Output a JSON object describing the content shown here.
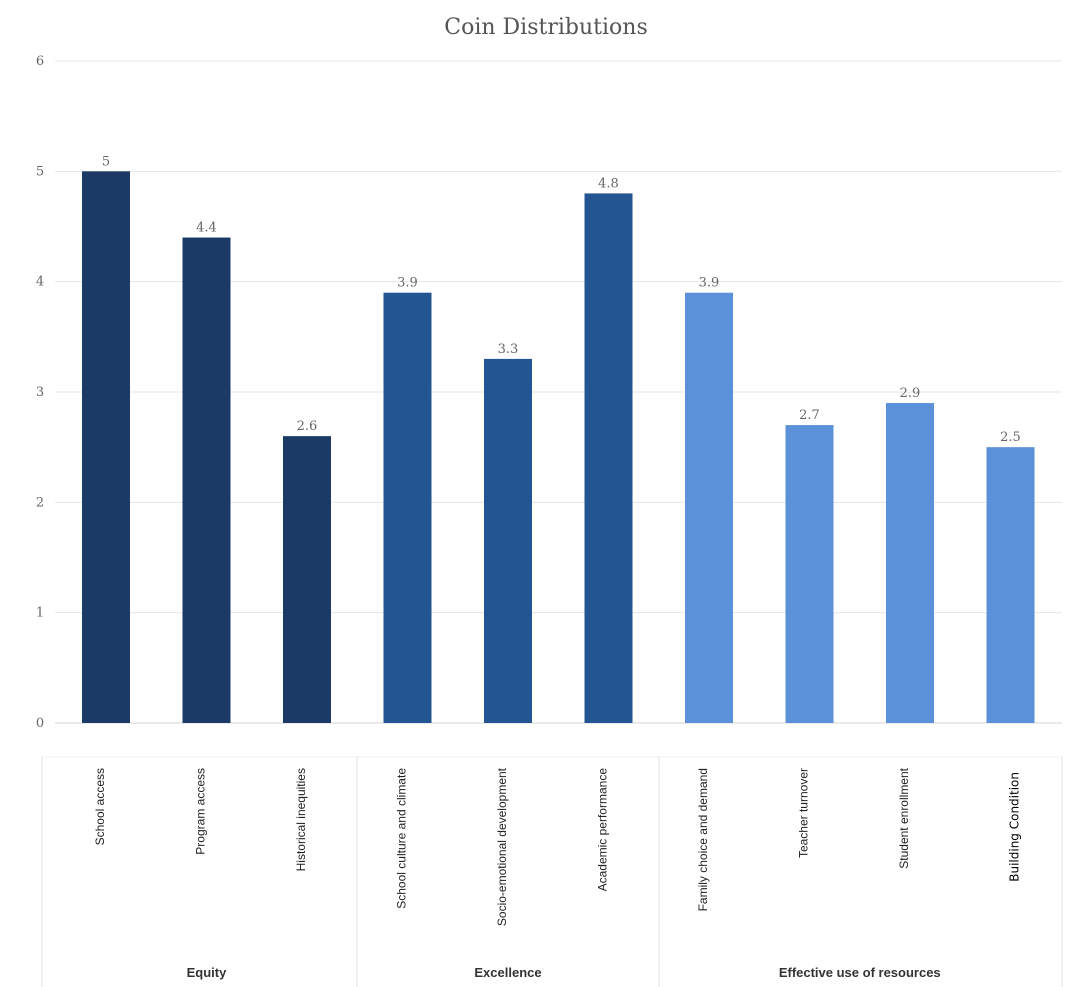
{
  "chart_data": {
    "type": "bar",
    "title": "Coin Distributions",
    "ylim": [
      0,
      6
    ],
    "yticks": [
      "0",
      "1",
      "2",
      "3",
      "4",
      "5",
      "6"
    ],
    "grid": true,
    "categories": [
      "School access",
      "Program access",
      "Historical inequities",
      "School culture and climate",
      "Socio-emotional development",
      "Academic performance",
      "Family choice and demand",
      "Teacher turnover",
      "Student enrollment",
      "Building Condition"
    ],
    "values": [
      5,
      4.4,
      2.6,
      3.9,
      3.3,
      4.8,
      3.9,
      2.7,
      2.9,
      2.5
    ],
    "value_labels": [
      "5",
      "4.4",
      "2.6",
      "3.9",
      "3.3",
      "4.8",
      "3.9",
      "2.7",
      "2.9",
      "2.5"
    ],
    "groups": [
      {
        "name": "Equity",
        "count": 3,
        "color": "#1b3a66"
      },
      {
        "name": "Excellence",
        "count": 3,
        "color": "#245593"
      },
      {
        "name": "Effective use of resources",
        "count": 4,
        "color": "#5b91d8"
      }
    ]
  }
}
